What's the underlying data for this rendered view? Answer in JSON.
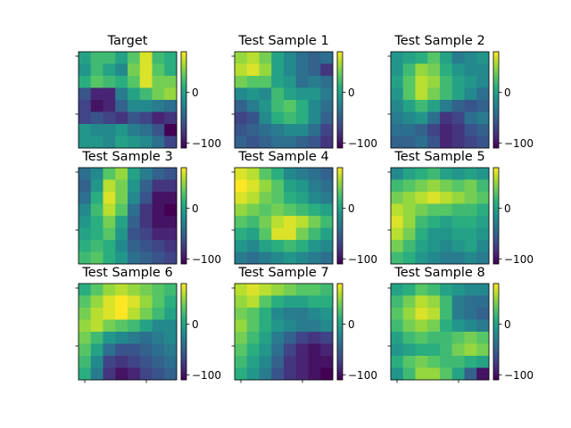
{
  "chart_data": [
    {
      "type": "heatmap",
      "title": "Target",
      "colormap": "viridis",
      "vmin": -110,
      "vmax": 80,
      "colorbar_ticks": [
        0,
        -100
      ],
      "colorbar_tick_labels": [
        "0",
        "−100"
      ],
      "values": [
        [
          0,
          20,
          20,
          0,
          30,
          70,
          20,
          10
        ],
        [
          -10,
          20,
          0,
          -20,
          40,
          70,
          30,
          10
        ],
        [
          10,
          30,
          20,
          10,
          30,
          70,
          40,
          40
        ],
        [
          -60,
          -90,
          -90,
          -30,
          0,
          20,
          40,
          50
        ],
        [
          -70,
          -100,
          -90,
          -50,
          -20,
          -20,
          -30,
          -40
        ],
        [
          -70,
          -60,
          -70,
          -80,
          -60,
          -70,
          -90,
          -80
        ],
        [
          -10,
          -20,
          -20,
          -10,
          -30,
          -40,
          -60,
          -110
        ],
        [
          -10,
          -10,
          -20,
          0,
          -10,
          -20,
          -40,
          -70
        ]
      ]
    },
    {
      "type": "heatmap",
      "title": "Test Sample 1",
      "colormap": "viridis",
      "vmin": -110,
      "vmax": 80,
      "colorbar_ticks": [
        0,
        -100
      ],
      "colorbar_tick_labels": [
        "0",
        "−100"
      ],
      "values": [
        [
          50,
          60,
          40,
          0,
          -20,
          -40,
          -50,
          -40
        ],
        [
          60,
          70,
          50,
          0,
          -20,
          -40,
          -50,
          -80
        ],
        [
          40,
          30,
          30,
          0,
          -10,
          -40,
          -30,
          -40
        ],
        [
          -20,
          -10,
          -20,
          20,
          0,
          -10,
          -10,
          -30
        ],
        [
          -50,
          -30,
          -10,
          20,
          30,
          10,
          -20,
          -40
        ],
        [
          -70,
          -60,
          -20,
          10,
          20,
          10,
          -20,
          -50
        ],
        [
          -60,
          -50,
          -40,
          -30,
          -20,
          -20,
          -40,
          -70
        ],
        [
          -50,
          -60,
          -50,
          -40,
          -40,
          -50,
          -60,
          -80
        ]
      ]
    },
    {
      "type": "heatmap",
      "title": "Test Sample 2",
      "colormap": "viridis",
      "vmin": -110,
      "vmax": 80,
      "colorbar_ticks": [
        0,
        -100
      ],
      "colorbar_tick_labels": [
        "0",
        "−100"
      ],
      "values": [
        [
          -10,
          0,
          10,
          30,
          0,
          -30,
          -20,
          -10
        ],
        [
          -10,
          20,
          50,
          40,
          10,
          -10,
          -20,
          -20
        ],
        [
          0,
          30,
          60,
          50,
          20,
          0,
          -10,
          -20
        ],
        [
          -10,
          30,
          60,
          40,
          20,
          0,
          -20,
          -40
        ],
        [
          -20,
          0,
          20,
          0,
          -30,
          -50,
          -60,
          -50
        ],
        [
          -30,
          -20,
          -10,
          -40,
          -80,
          -70,
          -40,
          -30
        ],
        [
          -40,
          -40,
          -50,
          -70,
          -90,
          -80,
          -60,
          -50
        ],
        [
          -50,
          -50,
          -40,
          -60,
          -90,
          -80,
          -70,
          -60
        ]
      ]
    },
    {
      "type": "heatmap",
      "title": "Test Sample 3",
      "colormap": "viridis",
      "vmin": -110,
      "vmax": 80,
      "colorbar_ticks": [
        0,
        -100
      ],
      "colorbar_tick_labels": [
        "0",
        "−100"
      ],
      "values": [
        [
          -40,
          -20,
          30,
          50,
          0,
          -30,
          -50,
          -60
        ],
        [
          -50,
          -10,
          60,
          40,
          -10,
          -50,
          -80,
          -80
        ],
        [
          -40,
          10,
          70,
          40,
          -20,
          -60,
          -100,
          -100
        ],
        [
          -20,
          20,
          60,
          30,
          -40,
          -80,
          -100,
          -110
        ],
        [
          -10,
          10,
          40,
          0,
          -50,
          -80,
          -100,
          -100
        ],
        [
          0,
          10,
          30,
          -10,
          -60,
          -70,
          -90,
          -90
        ],
        [
          10,
          20,
          10,
          -20,
          -50,
          -60,
          -70,
          -80
        ],
        [
          20,
          30,
          10,
          -10,
          -40,
          -50,
          -60,
          -70
        ]
      ]
    },
    {
      "type": "heatmap",
      "title": "Test Sample 4",
      "colormap": "viridis",
      "vmin": -110,
      "vmax": 80,
      "colorbar_ticks": [
        0,
        -100
      ],
      "colorbar_tick_labels": [
        "0",
        "−100"
      ],
      "values": [
        [
          70,
          60,
          30,
          10,
          -20,
          -30,
          -40,
          -50
        ],
        [
          80,
          70,
          50,
          30,
          0,
          -10,
          -30,
          -40
        ],
        [
          70,
          60,
          40,
          30,
          10,
          0,
          -20,
          -30
        ],
        [
          50,
          40,
          30,
          40,
          30,
          20,
          10,
          0
        ],
        [
          30,
          20,
          40,
          60,
          70,
          60,
          40,
          20
        ],
        [
          10,
          0,
          30,
          70,
          70,
          40,
          20,
          0
        ],
        [
          -10,
          -20,
          0,
          10,
          20,
          10,
          -10,
          -20
        ],
        [
          -30,
          -40,
          -30,
          -20,
          -10,
          -20,
          -30,
          -40
        ]
      ]
    },
    {
      "type": "heatmap",
      "title": "Test Sample 5",
      "colormap": "viridis",
      "vmin": -110,
      "vmax": 80,
      "colorbar_ticks": [
        0,
        -100
      ],
      "colorbar_tick_labels": [
        "0",
        "−100"
      ],
      "values": [
        [
          -20,
          0,
          10,
          20,
          0,
          -10,
          0,
          -10
        ],
        [
          20,
          30,
          40,
          50,
          40,
          30,
          40,
          20
        ],
        [
          40,
          50,
          60,
          70,
          60,
          50,
          40,
          30
        ],
        [
          60,
          50,
          40,
          30,
          30,
          20,
          20,
          10
        ],
        [
          70,
          50,
          20,
          10,
          0,
          10,
          10,
          0
        ],
        [
          60,
          40,
          10,
          -10,
          -10,
          0,
          0,
          -10
        ],
        [
          40,
          20,
          0,
          -10,
          -20,
          -10,
          0,
          -20
        ],
        [
          20,
          10,
          -10,
          -20,
          -30,
          -30,
          -20,
          -30
        ]
      ]
    },
    {
      "type": "heatmap",
      "title": "Test Sample 6",
      "colormap": "viridis",
      "vmin": -110,
      "vmax": 80,
      "colorbar_ticks": [
        0,
        -100
      ],
      "colorbar_tick_labels": [
        "0",
        "−100"
      ],
      "values": [
        [
          10,
          30,
          50,
          60,
          50,
          40,
          30,
          20
        ],
        [
          30,
          50,
          70,
          80,
          70,
          50,
          30,
          10
        ],
        [
          40,
          60,
          70,
          80,
          60,
          40,
          20,
          0
        ],
        [
          50,
          60,
          40,
          30,
          20,
          0,
          -20,
          -20
        ],
        [
          40,
          20,
          -10,
          -20,
          -30,
          -40,
          -30,
          -20
        ],
        [
          30,
          0,
          -40,
          -60,
          -60,
          -50,
          -40,
          -30
        ],
        [
          20,
          -20,
          -70,
          -80,
          -70,
          -60,
          -50,
          -40
        ],
        [
          10,
          -30,
          -80,
          -100,
          -90,
          -70,
          -60,
          -50
        ]
      ]
    },
    {
      "type": "heatmap",
      "title": "Test Sample 7",
      "colormap": "viridis",
      "vmin": -110,
      "vmax": 80,
      "colorbar_ticks": [
        0,
        -100
      ],
      "colorbar_tick_labels": [
        "0",
        "−100"
      ],
      "values": [
        [
          60,
          70,
          60,
          50,
          40,
          30,
          30,
          20
        ],
        [
          50,
          60,
          30,
          10,
          0,
          0,
          10,
          10
        ],
        [
          40,
          30,
          10,
          -20,
          -30,
          -30,
          -20,
          -10
        ],
        [
          50,
          30,
          10,
          -10,
          -20,
          -30,
          -30,
          -20
        ],
        [
          40,
          20,
          0,
          -30,
          -50,
          -70,
          -80,
          -70
        ],
        [
          30,
          10,
          -10,
          -40,
          -70,
          -90,
          -100,
          -90
        ],
        [
          20,
          0,
          -20,
          -50,
          -80,
          -90,
          -100,
          -100
        ],
        [
          10,
          -10,
          -30,
          -60,
          -80,
          -90,
          -100,
          -110
        ]
      ]
    },
    {
      "type": "heatmap",
      "title": "Test Sample 8",
      "colormap": "viridis",
      "vmin": -110,
      "vmax": 80,
      "colorbar_ticks": [
        0,
        -100
      ],
      "colorbar_tick_labels": [
        "0",
        "−100"
      ],
      "values": [
        [
          0,
          10,
          30,
          20,
          0,
          -10,
          -20,
          -20
        ],
        [
          20,
          40,
          60,
          50,
          20,
          -30,
          -40,
          -40
        ],
        [
          30,
          50,
          70,
          60,
          20,
          -30,
          -40,
          -50
        ],
        [
          20,
          40,
          50,
          40,
          10,
          -10,
          -20,
          -30
        ],
        [
          0,
          20,
          30,
          20,
          20,
          30,
          40,
          30
        ],
        [
          -10,
          0,
          10,
          10,
          20,
          40,
          50,
          40
        ],
        [
          10,
          30,
          40,
          30,
          20,
          20,
          10,
          0
        ],
        [
          -10,
          20,
          50,
          50,
          30,
          0,
          -50,
          -100
        ]
      ]
    }
  ]
}
